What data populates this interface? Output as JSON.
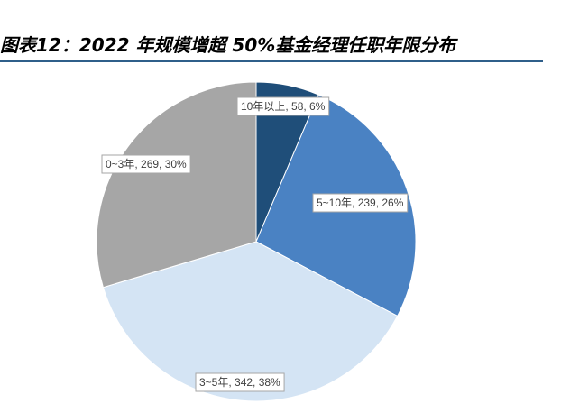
{
  "title": "图表12：2022 年规模增超 50%基金经理任职年限分布",
  "chart_data": {
    "type": "pie",
    "title": "",
    "categories": [
      "10年以上",
      "5~10年",
      "3~5年",
      "0~3年"
    ],
    "values": [
      58,
      239,
      342,
      269
    ],
    "percents": [
      6,
      26,
      38,
      30
    ],
    "labels": [
      "10年以上, 58, 6%",
      "5~10年, 239, 26%",
      "3~5年, 342, 38%",
      "0~3年, 269, 30%"
    ],
    "colors": [
      "#1f4e79",
      "#4a82c3",
      "#d4e4f4",
      "#a6a6a6"
    ],
    "start_angle": "12 o'clock",
    "direction": "clockwise",
    "legend": "none"
  }
}
